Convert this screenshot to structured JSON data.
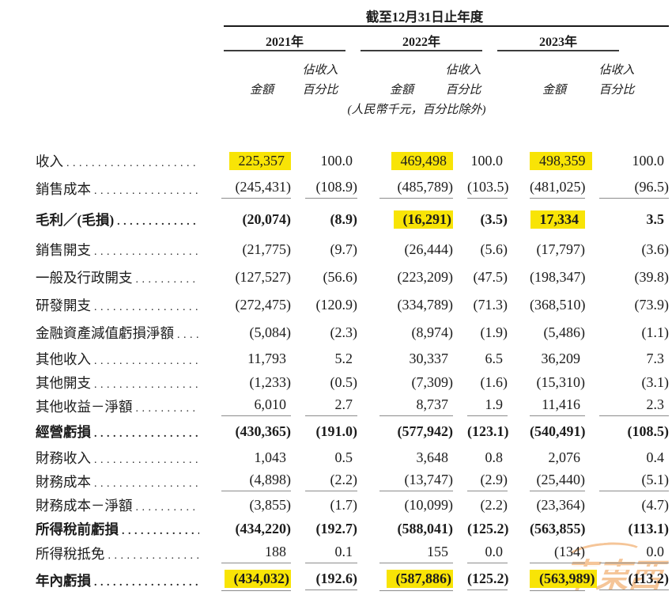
{
  "table": {
    "period_title": "截至12月31日止年度",
    "years": [
      "2021年",
      "2022年",
      "2023年"
    ],
    "col_headers": {
      "amount": "金額",
      "pct_line1": "佔收入",
      "pct_line2": "百分比"
    },
    "unit_note": "(人民幣千元，百分比除外)",
    "highlight_color": "#f8e406",
    "rows": [
      {
        "label": "收入",
        "bold": false,
        "rule_below": false,
        "cells": [
          {
            "v": "225,357",
            "hl": true
          },
          {
            "v": "100.0"
          },
          {
            "v": "469,498",
            "hl": true
          },
          {
            "v": "100.0"
          },
          {
            "v": "498,359",
            "hl": true
          },
          {
            "v": "100.0"
          }
        ]
      },
      {
        "label": "銷售成本",
        "bold": false,
        "rule_below": true,
        "cells": [
          {
            "v": "(245,431)"
          },
          {
            "v": "(108.9)"
          },
          {
            "v": "(485,789)"
          },
          {
            "v": "(103.5)"
          },
          {
            "v": "(481,025)"
          },
          {
            "v": "(96.5)"
          }
        ]
      },
      {
        "label": "毛利／(毛損)",
        "bold": true,
        "rule_below": false,
        "cells": [
          {
            "v": "(20,074)"
          },
          {
            "v": "(8.9)"
          },
          {
            "v": "(16,291)",
            "hl": true
          },
          {
            "v": "(3.5)"
          },
          {
            "v": "17,334",
            "hl": true
          },
          {
            "v": "3.5"
          }
        ]
      },
      {
        "label": "銷售開支",
        "bold": false,
        "rule_below": false,
        "cells": [
          {
            "v": "(21,775)"
          },
          {
            "v": "(9.7)"
          },
          {
            "v": "(26,444)"
          },
          {
            "v": "(5.6)"
          },
          {
            "v": "(17,797)"
          },
          {
            "v": "(3.6)"
          }
        ]
      },
      {
        "label": "一般及行政開支",
        "bold": false,
        "rule_below": false,
        "cells": [
          {
            "v": "(127,527)"
          },
          {
            "v": "(56.6)"
          },
          {
            "v": "(223,209)"
          },
          {
            "v": "(47.5)"
          },
          {
            "v": "(198,347)"
          },
          {
            "v": "(39.8)"
          }
        ]
      },
      {
        "label": "研發開支",
        "bold": false,
        "rule_below": false,
        "cells": [
          {
            "v": "(272,475)"
          },
          {
            "v": "(120.9)"
          },
          {
            "v": "(334,789)"
          },
          {
            "v": "(71.3)"
          },
          {
            "v": "(368,510)"
          },
          {
            "v": "(73.9)"
          }
        ]
      },
      {
        "label": "金融資產減值虧損淨額",
        "bold": false,
        "rule_below": false,
        "cells": [
          {
            "v": "(5,084)"
          },
          {
            "v": "(2.3)"
          },
          {
            "v": "(8,974)"
          },
          {
            "v": "(1.9)"
          },
          {
            "v": "(5,486)"
          },
          {
            "v": "(1.1)"
          }
        ]
      },
      {
        "label": "其他收入",
        "bold": false,
        "rule_below": false,
        "cells": [
          {
            "v": "11,793"
          },
          {
            "v": "5.2"
          },
          {
            "v": "30,337"
          },
          {
            "v": "6.5"
          },
          {
            "v": "36,209"
          },
          {
            "v": "7.3"
          }
        ]
      },
      {
        "label": "其他開支",
        "bold": false,
        "rule_below": false,
        "cells": [
          {
            "v": "(1,233)"
          },
          {
            "v": "(0.5)"
          },
          {
            "v": "(7,309)"
          },
          {
            "v": "(1.6)"
          },
          {
            "v": "(15,310)"
          },
          {
            "v": "(3.1)"
          }
        ]
      },
      {
        "label": "其他收益－淨額",
        "bold": false,
        "rule_below": true,
        "cells": [
          {
            "v": "6,010"
          },
          {
            "v": "2.7"
          },
          {
            "v": "8,737"
          },
          {
            "v": "1.9"
          },
          {
            "v": "11,416"
          },
          {
            "v": "2.3"
          }
        ]
      },
      {
        "label": "經營虧損",
        "bold": true,
        "rule_below": false,
        "cells": [
          {
            "v": "(430,365)"
          },
          {
            "v": "(191.0)"
          },
          {
            "v": "(577,942)"
          },
          {
            "v": "(123.1)"
          },
          {
            "v": "(540,491)"
          },
          {
            "v": "(108.5)"
          }
        ]
      },
      {
        "label": "財務收入",
        "bold": false,
        "rule_below": false,
        "cells": [
          {
            "v": "1,043"
          },
          {
            "v": "0.5"
          },
          {
            "v": "3,648"
          },
          {
            "v": "0.8"
          },
          {
            "v": "2,076"
          },
          {
            "v": "0.4"
          }
        ]
      },
      {
        "label": "財務成本",
        "bold": false,
        "rule_below": true,
        "cells": [
          {
            "v": "(4,898)"
          },
          {
            "v": "(2.2)"
          },
          {
            "v": "(13,747)"
          },
          {
            "v": "(2.9)"
          },
          {
            "v": "(25,440)"
          },
          {
            "v": "(5.1)"
          }
        ]
      },
      {
        "label": "財務成本－淨額",
        "bold": false,
        "rule_below": false,
        "cells": [
          {
            "v": "(3,855)"
          },
          {
            "v": "(1.7)"
          },
          {
            "v": "(10,099)"
          },
          {
            "v": "(2.2)"
          },
          {
            "v": "(23,364)"
          },
          {
            "v": "(4.7)"
          }
        ]
      },
      {
        "label": "所得稅前虧損",
        "bold": true,
        "rule_below": false,
        "cells": [
          {
            "v": "(434,220)"
          },
          {
            "v": "(192.7)"
          },
          {
            "v": "(588,041)"
          },
          {
            "v": "(125.2)"
          },
          {
            "v": "(563,855)"
          },
          {
            "v": "(113.1)"
          }
        ]
      },
      {
        "label": "所得稅抵免",
        "bold": false,
        "rule_below": true,
        "cells": [
          {
            "v": "188"
          },
          {
            "v": "0.1"
          },
          {
            "v": "155"
          },
          {
            "v": "0.0"
          },
          {
            "v": "(134)"
          },
          {
            "v": "0.0"
          }
        ]
      },
      {
        "label": "年內虧損",
        "bold": true,
        "rule_below": true,
        "cells": [
          {
            "v": "(434,032)",
            "hl": true
          },
          {
            "v": "(192.6)"
          },
          {
            "v": "(587,886)",
            "hl": true
          },
          {
            "v": "(125.2)"
          },
          {
            "v": "(563,989)",
            "hl": true
          },
          {
            "v": "(113.2)"
          }
        ]
      }
    ]
  },
  "watermark": {
    "text": "車東西",
    "color": "#efa055"
  }
}
